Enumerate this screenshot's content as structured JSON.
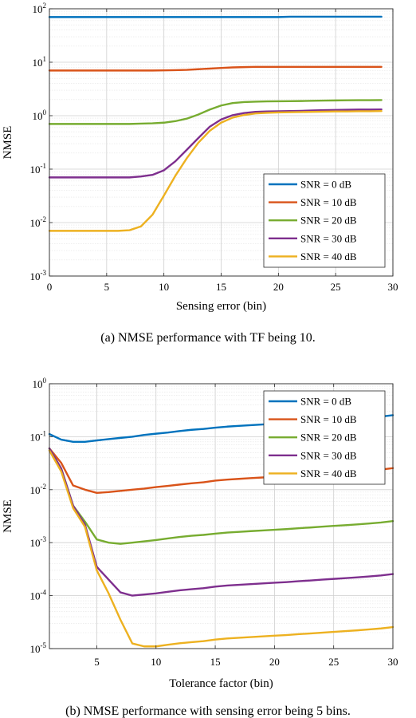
{
  "chart_data": [
    {
      "type": "line",
      "caption": "(a)  NMSE performance with TF being 10.",
      "xlabel": "Sensing error (bin)",
      "ylabel": "NMSE",
      "xlim": [
        0,
        30
      ],
      "ylim": [
        0.001,
        100
      ],
      "yscale": "log",
      "xticks": [
        "0",
        "5",
        "10",
        "15",
        "20",
        "25",
        "30"
      ],
      "yticks": [
        {
          "base": "10",
          "exp": "-3"
        },
        {
          "base": "10",
          "exp": "-2"
        },
        {
          "base": "10",
          "exp": "-1"
        },
        {
          "base": "10",
          "exp": "0"
        },
        {
          "base": "10",
          "exp": "1"
        },
        {
          "base": "10",
          "exp": "2"
        }
      ],
      "grid": true,
      "legend_position": "bottom-right",
      "x": [
        0,
        1,
        2,
        3,
        4,
        5,
        6,
        7,
        8,
        9,
        10,
        11,
        12,
        13,
        14,
        15,
        16,
        17,
        18,
        19,
        20,
        21,
        22,
        23,
        24,
        25,
        26,
        27,
        28,
        29
      ],
      "series": [
        {
          "name": "SNR = 0 dB",
          "color": "#0072BD",
          "values": [
            70,
            70,
            70,
            70,
            70,
            70,
            70,
            70,
            70,
            70,
            70,
            70,
            70,
            70,
            70,
            70,
            70,
            70,
            70,
            70,
            70,
            71,
            71,
            71,
            71,
            71,
            71,
            71,
            71,
            71
          ]
        },
        {
          "name": "SNR = 10 dB",
          "color": "#D95319",
          "values": [
            7.0,
            7.0,
            7.0,
            7.0,
            7.0,
            7.0,
            7.0,
            7.0,
            7.0,
            7.0,
            7.05,
            7.1,
            7.2,
            7.4,
            7.6,
            7.8,
            8.0,
            8.1,
            8.2,
            8.2,
            8.2,
            8.2,
            8.2,
            8.2,
            8.2,
            8.2,
            8.2,
            8.2,
            8.2,
            8.2
          ]
        },
        {
          "name": "SNR = 20 dB",
          "color": "#77AC30",
          "values": [
            0.7,
            0.7,
            0.7,
            0.7,
            0.7,
            0.7,
            0.7,
            0.7,
            0.71,
            0.72,
            0.74,
            0.79,
            0.88,
            1.05,
            1.3,
            1.55,
            1.72,
            1.8,
            1.83,
            1.85,
            1.86,
            1.87,
            1.88,
            1.9,
            1.92,
            1.93,
            1.94,
            1.95,
            1.95,
            1.96
          ]
        },
        {
          "name": "SNR = 30 dB",
          "color": "#7E2F8E",
          "values": [
            0.07,
            0.07,
            0.07,
            0.07,
            0.07,
            0.07,
            0.07,
            0.07,
            0.073,
            0.078,
            0.095,
            0.14,
            0.23,
            0.38,
            0.62,
            0.85,
            1.02,
            1.12,
            1.18,
            1.2,
            1.21,
            1.22,
            1.23,
            1.25,
            1.27,
            1.28,
            1.29,
            1.3,
            1.3,
            1.31
          ]
        },
        {
          "name": "SNR = 40 dB",
          "color": "#EDB120",
          "values": [
            0.007,
            0.007,
            0.007,
            0.007,
            0.007,
            0.007,
            0.007,
            0.0072,
            0.0085,
            0.014,
            0.032,
            0.075,
            0.16,
            0.31,
            0.52,
            0.74,
            0.92,
            1.03,
            1.1,
            1.13,
            1.15,
            1.16,
            1.17,
            1.18,
            1.19,
            1.2,
            1.2,
            1.21,
            1.21,
            1.22
          ]
        }
      ]
    },
    {
      "type": "line",
      "caption": "(b)  NMSE performance with sensing error being 5 bins.",
      "xlabel": "Tolerance factor (bin)",
      "ylabel": "NMSE",
      "xlim": [
        1,
        30
      ],
      "ylim": [
        1e-05,
        1
      ],
      "yscale": "log",
      "xticks": [
        "5",
        "10",
        "15",
        "20",
        "25",
        "30"
      ],
      "yticks": [
        {
          "base": "10",
          "exp": "-5"
        },
        {
          "base": "10",
          "exp": "-4"
        },
        {
          "base": "10",
          "exp": "-3"
        },
        {
          "base": "10",
          "exp": "-2"
        },
        {
          "base": "10",
          "exp": "-1"
        },
        {
          "base": "10",
          "exp": "0"
        }
      ],
      "grid": true,
      "legend_position": "top-right",
      "x": [
        1,
        2,
        3,
        4,
        5,
        6,
        7,
        8,
        9,
        10,
        11,
        12,
        13,
        14,
        15,
        16,
        17,
        18,
        19,
        20,
        21,
        22,
        23,
        24,
        25,
        26,
        27,
        28,
        29,
        30
      ],
      "series": [
        {
          "name": "SNR = 0 dB",
          "color": "#0072BD",
          "values": [
            0.112,
            0.088,
            0.08,
            0.08,
            0.085,
            0.09,
            0.095,
            0.1,
            0.108,
            0.114,
            0.12,
            0.128,
            0.135,
            0.14,
            0.148,
            0.155,
            0.16,
            0.165,
            0.17,
            0.175,
            0.18,
            0.187,
            0.193,
            0.2,
            0.207,
            0.214,
            0.221,
            0.23,
            0.24,
            0.255
          ]
        },
        {
          "name": "SNR = 10 dB",
          "color": "#D95319",
          "values": [
            0.06,
            0.032,
            0.012,
            0.01,
            0.0087,
            0.009,
            0.0095,
            0.01,
            0.0105,
            0.0112,
            0.0118,
            0.0125,
            0.0132,
            0.0138,
            0.0148,
            0.0155,
            0.016,
            0.0165,
            0.017,
            0.0175,
            0.018,
            0.0187,
            0.0193,
            0.02,
            0.0207,
            0.0214,
            0.0221,
            0.023,
            0.024,
            0.0255
          ]
        },
        {
          "name": "SNR = 20 dB",
          "color": "#77AC30",
          "values": [
            0.06,
            0.025,
            0.005,
            0.0025,
            0.00115,
            0.001,
            0.00095,
            0.001,
            0.00106,
            0.00112,
            0.0012,
            0.00128,
            0.00135,
            0.0014,
            0.00148,
            0.00155,
            0.0016,
            0.00165,
            0.0017,
            0.00175,
            0.0018,
            0.00187,
            0.00193,
            0.002,
            0.00207,
            0.00214,
            0.00221,
            0.0023,
            0.0024,
            0.00255
          ]
        },
        {
          "name": "SNR = 30 dB",
          "color": "#7E2F8E",
          "values": [
            0.06,
            0.025,
            0.005,
            0.0022,
            0.00035,
            0.0002,
            0.000115,
            0.0001,
            0.000105,
            0.00011,
            0.000118,
            0.000126,
            0.000132,
            0.000138,
            0.000148,
            0.000155,
            0.00016,
            0.000165,
            0.00017,
            0.000175,
            0.00018,
            0.000187,
            0.000193,
            0.0002,
            0.000207,
            0.000214,
            0.000221,
            0.00023,
            0.00024,
            0.000255
          ]
        },
        {
          "name": "SNR = 40 dB",
          "color": "#EDB120",
          "values": [
            0.055,
            0.022,
            0.0045,
            0.002,
            0.0003,
            0.00011,
            3.5e-05,
            1.25e-05,
            1.1e-05,
            1.1e-05,
            1.18e-05,
            1.26e-05,
            1.32e-05,
            1.38e-05,
            1.48e-05,
            1.55e-05,
            1.6e-05,
            1.65e-05,
            1.7e-05,
            1.75e-05,
            1.8e-05,
            1.87e-05,
            1.93e-05,
            2e-05,
            2.07e-05,
            2.14e-05,
            2.21e-05,
            2.3e-05,
            2.4e-05,
            2.55e-05
          ]
        }
      ]
    }
  ]
}
